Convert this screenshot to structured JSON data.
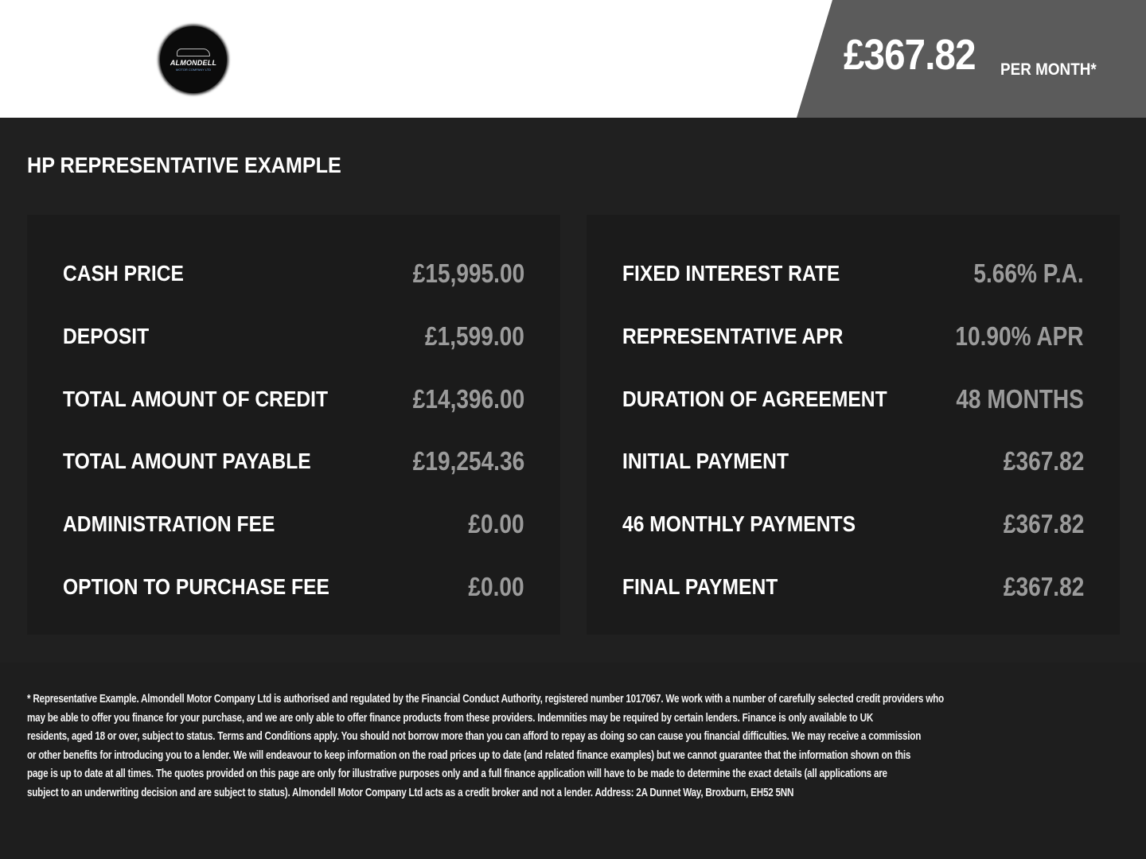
{
  "header": {
    "logo_text": "ALMONDELL",
    "logo_subtext": "MOTOR COMPANY LTD",
    "price": "£367.82",
    "per_month": "PER MONTH*",
    "price_tab_color": "#5b5b5b"
  },
  "title": "HP REPRESENTATIVE EXAMPLE",
  "left_rows": [
    {
      "label": "CASH PRICE",
      "value": "£15,995.00"
    },
    {
      "label": "DEPOSIT",
      "value": "£1,599.00"
    },
    {
      "label": "TOTAL AMOUNT OF CREDIT",
      "value": "£14,396.00"
    },
    {
      "label": "TOTAL AMOUNT PAYABLE",
      "value": "£19,254.36"
    },
    {
      "label": "ADMINISTRATION FEE",
      "value": "£0.00"
    },
    {
      "label": "OPTION TO PURCHASE FEE",
      "value": "£0.00"
    }
  ],
  "right_rows": [
    {
      "label": "FIXED INTEREST RATE",
      "value": "5.66% P.A."
    },
    {
      "label": "REPRESENTATIVE APR",
      "value": "10.90% APR"
    },
    {
      "label": "DURATION OF AGREEMENT",
      "value": "48 MONTHS"
    },
    {
      "label": "INITIAL PAYMENT",
      "value": "£367.82"
    },
    {
      "label": "46 MONTHLY PAYMENTS",
      "value": "£367.82"
    },
    {
      "label": "FINAL PAYMENT",
      "value": "£367.82"
    }
  ],
  "footnote_lines": [
    "* Representative Example. Almondell Motor Company Ltd is authorised and regulated by the Financial Conduct Authority, registered number 1017067. We work with a number of carefully selected credit providers who",
    "may be able to offer you finance for your purchase, and we are only able to offer finance products from these providers. Indemnities may be required by certain lenders. Finance is only available to UK",
    "residents, aged 18 or over, subject to status. Terms and Conditions apply. You should not borrow more than you can afford to repay as doing so can cause you financial difficulties. We may receive a commission",
    "or other benefits for introducing you to a lender. We will endeavour to keep information on the road prices up to date (and related finance examples) but we cannot guarantee that the information shown on this",
    "page is up to date at all times. The quotes provided on this page are only for illustrative purposes only and a full finance application will have to be made to determine the exact details (all applications are",
    "subject to an underwriting decision and are subject to status). Almondell Motor Company Ltd acts as a credit broker and not a lender. Address:  2A Dunnet Way, Broxburn, EH52 5NN"
  ]
}
